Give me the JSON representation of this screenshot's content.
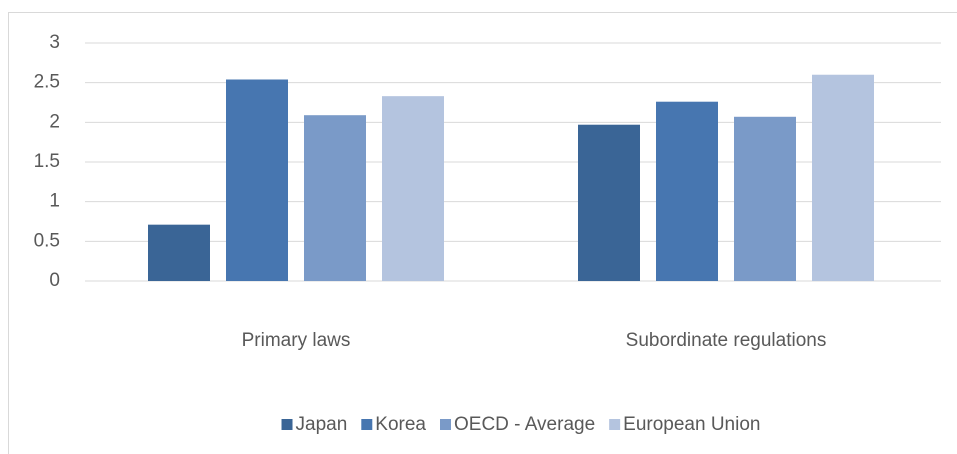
{
  "chart_data": {
    "type": "bar",
    "categories": [
      "Primary laws",
      "Subordinate regulations"
    ],
    "series": [
      {
        "name": "Japan",
        "color": "#3a6596",
        "values": [
          0.71,
          1.97
        ]
      },
      {
        "name": "Korea",
        "color": "#4776b0",
        "values": [
          2.54,
          2.26
        ]
      },
      {
        "name": "OECD - Average",
        "color": "#7a9ac8",
        "values": [
          2.09,
          2.07
        ]
      },
      {
        "name": "European Union",
        "color": "#b4c4df",
        "values": [
          2.33,
          2.6
        ]
      }
    ],
    "ylim": [
      0,
      3
    ],
    "yticks": [
      0,
      0.5,
      1,
      1.5,
      2,
      2.5,
      3
    ],
    "grid": true,
    "legend": "bottom"
  }
}
